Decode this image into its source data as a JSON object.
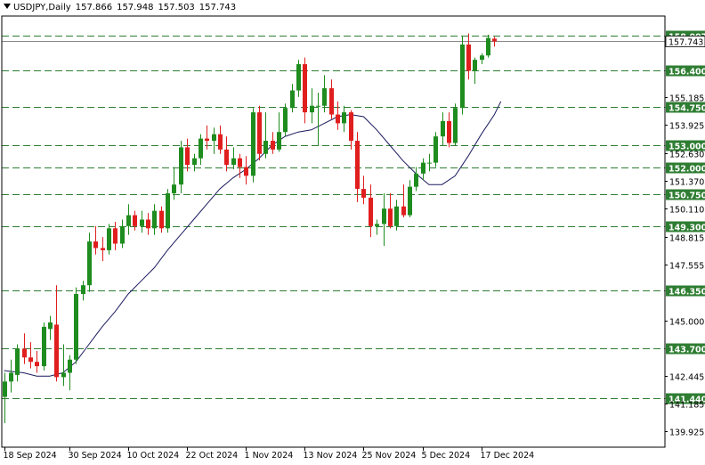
{
  "header": {
    "symbol": "USDJPY,Daily",
    "open": "157.866",
    "high": "157.948",
    "low": "157.503",
    "close": "157.743"
  },
  "colors": {
    "bull": "#1e8c1e",
    "bear": "#e01e1e",
    "level_line": "#2e7d32",
    "ma_line": "#1a1a5e",
    "current_price_line": "#888888"
  },
  "chart_data": {
    "type": "candlestick",
    "ylim": [
      139.2,
      158.9
    ],
    "x_tick_labels": [
      "18 Sep 2024",
      "30 Sep 2024",
      "10 Oct 2024",
      "22 Oct 2024",
      "1 Nov 2024",
      "13 Nov 2024",
      "25 Nov 2024",
      "5 Dec 2024",
      "17 Dec 2024"
    ],
    "x_tick_indices": [
      0,
      10,
      19,
      28,
      37,
      46,
      55,
      64,
      73
    ],
    "y_tick_labels": [
      "155.185",
      "153.925",
      "152.630",
      "151.370",
      "150.110",
      "148.815",
      "147.555",
      "145.000",
      "142.445",
      "141.185",
      "139.925"
    ],
    "levels": [
      {
        "value": 158.007,
        "label": "158.007"
      },
      {
        "value": 156.4,
        "label": "156.400"
      },
      {
        "value": 154.75,
        "label": "154.750"
      },
      {
        "value": 153.0,
        "label": "153.000"
      },
      {
        "value": 152.0,
        "label": "152.000"
      },
      {
        "value": 150.75,
        "label": "150.750"
      },
      {
        "value": 149.3,
        "label": "149.300"
      },
      {
        "value": 146.35,
        "label": "146.350"
      },
      {
        "value": 143.7,
        "label": "143.700"
      },
      {
        "value": 141.44,
        "label": "141.440"
      }
    ],
    "current_price": {
      "value": 157.743,
      "label": "157.743"
    },
    "candles": [
      {
        "o": 141.5,
        "h": 142.6,
        "l": 140.3,
        "c": 142.2
      },
      {
        "o": 142.2,
        "h": 143.2,
        "l": 141.7,
        "c": 142.6
      },
      {
        "o": 142.5,
        "h": 143.9,
        "l": 142.2,
        "c": 143.7
      },
      {
        "o": 143.7,
        "h": 144.4,
        "l": 143.0,
        "c": 143.3
      },
      {
        "o": 143.3,
        "h": 144.0,
        "l": 142.8,
        "c": 143.1
      },
      {
        "o": 143.1,
        "h": 143.6,
        "l": 142.6,
        "c": 142.9
      },
      {
        "o": 142.9,
        "h": 144.9,
        "l": 142.7,
        "c": 144.7
      },
      {
        "o": 144.6,
        "h": 145.2,
        "l": 144.1,
        "c": 144.9
      },
      {
        "o": 144.8,
        "h": 146.6,
        "l": 142.2,
        "c": 142.4
      },
      {
        "o": 142.4,
        "h": 143.9,
        "l": 142.0,
        "c": 142.6
      },
      {
        "o": 142.6,
        "h": 143.4,
        "l": 141.8,
        "c": 143.2
      },
      {
        "o": 143.2,
        "h": 146.5,
        "l": 143.0,
        "c": 146.2
      },
      {
        "o": 146.2,
        "h": 146.8,
        "l": 145.9,
        "c": 146.6
      },
      {
        "o": 146.6,
        "h": 149.0,
        "l": 146.3,
        "c": 148.6
      },
      {
        "o": 148.6,
        "h": 149.3,
        "l": 148.0,
        "c": 148.3
      },
      {
        "o": 148.3,
        "h": 148.8,
        "l": 147.7,
        "c": 148.2
      },
      {
        "o": 148.2,
        "h": 149.4,
        "l": 148.0,
        "c": 149.2
      },
      {
        "o": 149.2,
        "h": 149.5,
        "l": 148.2,
        "c": 148.5
      },
      {
        "o": 148.5,
        "h": 149.6,
        "l": 148.3,
        "c": 149.3
      },
      {
        "o": 149.3,
        "h": 150.3,
        "l": 148.9,
        "c": 149.8
      },
      {
        "o": 149.8,
        "h": 150.0,
        "l": 149.1,
        "c": 149.3
      },
      {
        "o": 149.3,
        "h": 150.0,
        "l": 149.0,
        "c": 149.6
      },
      {
        "o": 149.6,
        "h": 149.9,
        "l": 148.9,
        "c": 149.2
      },
      {
        "o": 149.2,
        "h": 150.3,
        "l": 148.9,
        "c": 150.0
      },
      {
        "o": 150.0,
        "h": 150.2,
        "l": 149.0,
        "c": 149.2
      },
      {
        "o": 149.2,
        "h": 151.0,
        "l": 149.0,
        "c": 150.8
      },
      {
        "o": 150.8,
        "h": 152.0,
        "l": 150.5,
        "c": 151.2
      },
      {
        "o": 151.2,
        "h": 153.2,
        "l": 150.8,
        "c": 152.9
      },
      {
        "o": 152.9,
        "h": 153.3,
        "l": 151.8,
        "c": 152.1
      },
      {
        "o": 152.1,
        "h": 152.6,
        "l": 151.8,
        "c": 152.4
      },
      {
        "o": 152.4,
        "h": 153.5,
        "l": 152.1,
        "c": 153.3
      },
      {
        "o": 153.3,
        "h": 153.9,
        "l": 152.8,
        "c": 153.2
      },
      {
        "o": 153.2,
        "h": 153.8,
        "l": 152.6,
        "c": 153.5
      },
      {
        "o": 153.5,
        "h": 153.9,
        "l": 152.6,
        "c": 152.8
      },
      {
        "o": 152.8,
        "h": 153.4,
        "l": 151.8,
        "c": 152.1
      },
      {
        "o": 152.1,
        "h": 152.9,
        "l": 151.9,
        "c": 152.4
      },
      {
        "o": 152.4,
        "h": 152.6,
        "l": 151.5,
        "c": 152.0
      },
      {
        "o": 152.0,
        "h": 152.5,
        "l": 151.2,
        "c": 151.6
      },
      {
        "o": 151.6,
        "h": 154.7,
        "l": 151.3,
        "c": 154.5
      },
      {
        "o": 154.5,
        "h": 154.8,
        "l": 152.3,
        "c": 152.6
      },
      {
        "o": 152.6,
        "h": 154.5,
        "l": 152.4,
        "c": 153.2
      },
      {
        "o": 153.2,
        "h": 153.6,
        "l": 152.6,
        "c": 152.8
      },
      {
        "o": 152.8,
        "h": 154.5,
        "l": 152.7,
        "c": 153.6
      },
      {
        "o": 153.6,
        "h": 154.9,
        "l": 153.4,
        "c": 154.7
      },
      {
        "o": 154.7,
        "h": 155.8,
        "l": 154.5,
        "c": 155.5
      },
      {
        "o": 155.5,
        "h": 156.9,
        "l": 155.2,
        "c": 156.7
      },
      {
        "o": 156.7,
        "h": 157.0,
        "l": 154.0,
        "c": 154.5
      },
      {
        "o": 154.5,
        "h": 155.6,
        "l": 154.0,
        "c": 154.8
      },
      {
        "o": 154.8,
        "h": 155.4,
        "l": 153.0,
        "c": 154.8
      },
      {
        "o": 154.8,
        "h": 156.2,
        "l": 154.5,
        "c": 155.6
      },
      {
        "o": 155.6,
        "h": 156.0,
        "l": 154.2,
        "c": 154.4
      },
      {
        "o": 154.4,
        "h": 155.0,
        "l": 153.7,
        "c": 154.0
      },
      {
        "o": 154.0,
        "h": 154.8,
        "l": 153.6,
        "c": 154.5
      },
      {
        "o": 154.5,
        "h": 154.6,
        "l": 152.8,
        "c": 153.2
      },
      {
        "o": 153.2,
        "h": 153.6,
        "l": 150.4,
        "c": 151.0
      },
      {
        "o": 151.0,
        "h": 151.6,
        "l": 150.3,
        "c": 150.6
      },
      {
        "o": 150.6,
        "h": 151.2,
        "l": 148.8,
        "c": 149.3
      },
      {
        "o": 149.3,
        "h": 149.6,
        "l": 148.9,
        "c": 149.4
      },
      {
        "o": 149.4,
        "h": 150.8,
        "l": 148.4,
        "c": 150.1
      },
      {
        "o": 150.1,
        "h": 150.8,
        "l": 149.2,
        "c": 149.3
      },
      {
        "o": 149.3,
        "h": 150.5,
        "l": 149.1,
        "c": 150.2
      },
      {
        "o": 150.2,
        "h": 151.2,
        "l": 149.7,
        "c": 149.8
      },
      {
        "o": 149.8,
        "h": 151.4,
        "l": 149.7,
        "c": 151.1
      },
      {
        "o": 151.1,
        "h": 152.0,
        "l": 150.9,
        "c": 151.7
      },
      {
        "o": 151.7,
        "h": 152.4,
        "l": 151.4,
        "c": 152.2
      },
      {
        "o": 152.2,
        "h": 152.6,
        "l": 151.8,
        "c": 152.2
      },
      {
        "o": 152.2,
        "h": 153.6,
        "l": 152.0,
        "c": 153.4
      },
      {
        "o": 153.4,
        "h": 154.5,
        "l": 153.0,
        "c": 154.1
      },
      {
        "o": 154.1,
        "h": 154.5,
        "l": 152.9,
        "c": 153.1
      },
      {
        "o": 153.1,
        "h": 154.9,
        "l": 153.0,
        "c": 154.7
      },
      {
        "o": 154.7,
        "h": 158.0,
        "l": 154.4,
        "c": 157.6
      },
      {
        "o": 157.6,
        "h": 158.1,
        "l": 156.0,
        "c": 156.4
      },
      {
        "o": 156.4,
        "h": 157.0,
        "l": 155.8,
        "c": 156.9
      },
      {
        "o": 156.9,
        "h": 157.2,
        "l": 156.7,
        "c": 157.1
      },
      {
        "o": 157.1,
        "h": 158.05,
        "l": 157.0,
        "c": 157.9
      },
      {
        "o": 157.866,
        "h": 157.948,
        "l": 157.503,
        "c": 157.743
      }
    ],
    "ma": [
      {
        "i": 0,
        "v": 142.7
      },
      {
        "i": 3,
        "v": 142.6
      },
      {
        "i": 5,
        "v": 142.45
      },
      {
        "i": 7,
        "v": 142.45
      },
      {
        "i": 9,
        "v": 142.6
      },
      {
        "i": 11,
        "v": 143.1
      },
      {
        "i": 13,
        "v": 143.9
      },
      {
        "i": 15,
        "v": 144.7
      },
      {
        "i": 17,
        "v": 145.4
      },
      {
        "i": 19,
        "v": 146.2
      },
      {
        "i": 21,
        "v": 146.8
      },
      {
        "i": 23,
        "v": 147.4
      },
      {
        "i": 25,
        "v": 148.2
      },
      {
        "i": 27,
        "v": 148.9
      },
      {
        "i": 29,
        "v": 149.6
      },
      {
        "i": 31,
        "v": 150.3
      },
      {
        "i": 33,
        "v": 151.0
      },
      {
        "i": 35,
        "v": 151.5
      },
      {
        "i": 37,
        "v": 151.9
      },
      {
        "i": 39,
        "v": 152.4
      },
      {
        "i": 41,
        "v": 153.0
      },
      {
        "i": 43,
        "v": 153.4
      },
      {
        "i": 45,
        "v": 153.6
      },
      {
        "i": 47,
        "v": 153.7
      },
      {
        "i": 49,
        "v": 154.0
      },
      {
        "i": 51,
        "v": 154.3
      },
      {
        "i": 53,
        "v": 154.4
      },
      {
        "i": 55,
        "v": 154.3
      },
      {
        "i": 57,
        "v": 153.7
      },
      {
        "i": 59,
        "v": 153.0
      },
      {
        "i": 61,
        "v": 152.3
      },
      {
        "i": 63,
        "v": 151.7
      },
      {
        "i": 65,
        "v": 151.2
      },
      {
        "i": 67,
        "v": 151.2
      },
      {
        "i": 69,
        "v": 151.6
      },
      {
        "i": 71,
        "v": 152.5
      },
      {
        "i": 73,
        "v": 153.5
      },
      {
        "i": 75,
        "v": 154.4
      },
      {
        "i": 76,
        "v": 155.0
      }
    ]
  }
}
